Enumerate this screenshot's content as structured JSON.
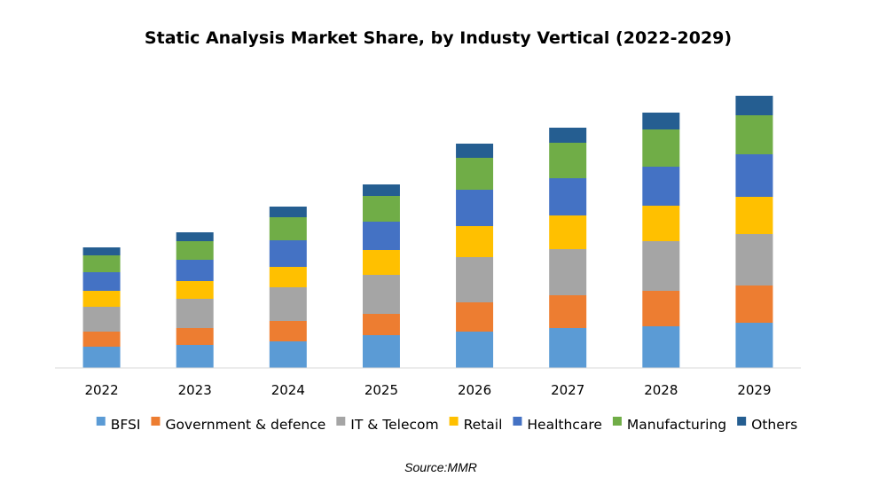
{
  "chart_data": {
    "type": "bar",
    "stacked": true,
    "title": "Static Analysis Market Share, by Industy Vertical (2022-2029)",
    "xlabel": "",
    "ylabel": "",
    "categories": [
      "2022",
      "2023",
      "2024",
      "2025",
      "2026",
      "2027",
      "2028",
      "2029"
    ],
    "ylim": [
      0,
      310
    ],
    "grid": false,
    "legend_position": "bottom",
    "series": [
      {
        "name": "BFSI",
        "color": "#5B9BD5",
        "values": [
          24,
          26,
          30,
          37,
          41,
          45,
          47,
          51
        ]
      },
      {
        "name": "Government & defence",
        "color": "#ED7D31",
        "values": [
          17,
          19,
          23,
          24,
          33,
          37,
          40,
          42
        ]
      },
      {
        "name": "IT & Telecom",
        "color": "#A5A5A5",
        "values": [
          28,
          33,
          38,
          44,
          51,
          52,
          56,
          58
        ]
      },
      {
        "name": "Retail",
        "color": "#FFC000",
        "values": [
          18,
          20,
          23,
          28,
          35,
          38,
          40,
          42
        ]
      },
      {
        "name": "Healthcare",
        "color": "#4472C4",
        "values": [
          21,
          24,
          30,
          32,
          41,
          42,
          44,
          48
        ]
      },
      {
        "name": "Manufacturing",
        "color": "#70AD47",
        "values": [
          19,
          21,
          26,
          29,
          36,
          40,
          42,
          44
        ]
      },
      {
        "name": "Others",
        "color": "#255E91",
        "values": [
          9,
          10,
          12,
          13,
          16,
          17,
          19,
          22
        ]
      }
    ],
    "source": "Source:MMR"
  }
}
